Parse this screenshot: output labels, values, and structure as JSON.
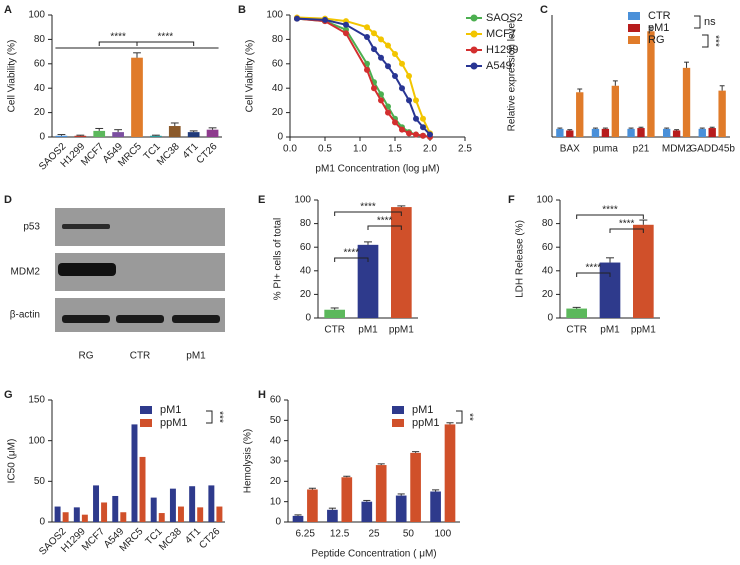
{
  "chart_data": [
    {
      "type": "bar",
      "panel": "A",
      "ylabel": "Cell Viability (%)",
      "categories": [
        "SAOS2",
        "H1299",
        "MCF7",
        "A549",
        "MRC5",
        "TC1",
        "MC38",
        "4T1",
        "CT26"
      ],
      "values": [
        1,
        1,
        5,
        4,
        65,
        1,
        9,
        4,
        6
      ],
      "errors": [
        1,
        0.5,
        2,
        2,
        4,
        0.5,
        2.5,
        1,
        1.5
      ],
      "colors": [
        "#4a90d9",
        "#c0392b",
        "#5cb85c",
        "#7b4fa0",
        "#e07b2a",
        "#2a9d9d",
        "#8b5a2b",
        "#1f3a7a",
        "#8e3b8e"
      ],
      "ylim": [
        0,
        100
      ],
      "yticks": [
        0,
        20,
        40,
        60,
        80,
        100
      ],
      "annotations": [
        "****",
        "****"
      ]
    },
    {
      "type": "line",
      "panel": "B",
      "ylabel": "Cell Viability (%)",
      "xlabel": "pM1 Concentration (log μM)",
      "x": [
        0.1,
        0.5,
        0.8,
        1.1,
        1.2,
        1.3,
        1.4,
        1.5,
        1.6,
        1.7,
        1.8,
        1.9,
        2.0
      ],
      "series": [
        {
          "name": "SAOS2",
          "color": "#4caf50",
          "values": [
            97,
            95,
            88,
            60,
            45,
            35,
            25,
            15,
            8,
            4,
            2,
            1,
            0
          ]
        },
        {
          "name": "MCF7",
          "color": "#f2c500",
          "values": [
            98,
            97,
            95,
            90,
            85,
            80,
            75,
            68,
            60,
            50,
            30,
            15,
            3
          ]
        },
        {
          "name": "H1299",
          "color": "#d32f2f",
          "values": [
            97,
            95,
            85,
            55,
            40,
            30,
            20,
            12,
            6,
            3,
            2,
            1,
            0
          ]
        },
        {
          "name": "A549",
          "color": "#283593",
          "values": [
            97,
            96,
            92,
            82,
            72,
            65,
            58,
            50,
            40,
            30,
            15,
            8,
            2
          ]
        }
      ],
      "xlim": [
        0,
        2.5
      ],
      "xticks": [
        {
          "value": 0,
          "label": "0.0"
        },
        0.5,
        {
          "value": 1,
          "label": "1.0"
        },
        1.5,
        {
          "value": 2,
          "label": "2.0"
        },
        2.5
      ],
      "ylim": [
        0,
        100
      ],
      "yticks": [
        0,
        20,
        40,
        60,
        80,
        100
      ]
    },
    {
      "type": "bar",
      "panel": "C",
      "ylabel": "Relative expression level",
      "categories": [
        "BAX",
        "puma",
        "p21",
        "MDM2",
        "GADD45b"
      ],
      "series": [
        {
          "name": "CTR",
          "color": "#4a90d9",
          "values": [
            1,
            1,
            1,
            1,
            1
          ],
          "errors": [
            0.1,
            0.1,
            0.1,
            0.1,
            0.1
          ]
        },
        {
          "name": "pM1",
          "color": "#b71c1c",
          "values": [
            0.8,
            1,
            1.1,
            0.8,
            1.1
          ],
          "errors": [
            0.1,
            0.1,
            0.1,
            0.1,
            0.1
          ]
        },
        {
          "name": "RG",
          "color": "#e07b2a",
          "values": [
            5.5,
            6.3,
            13,
            8.5,
            5.7
          ],
          "errors": [
            0.4,
            0.6,
            0.5,
            0.7,
            0.6
          ]
        }
      ],
      "ylim": [
        0,
        15
      ],
      "annotations": [
        "ns",
        "***"
      ]
    },
    {
      "type": "bar",
      "panel": "E",
      "ylabel": "% PI+ cells of total",
      "categories": [
        "CTR",
        "pM1",
        "ppM1"
      ],
      "values": [
        7,
        62,
        94
      ],
      "errors": [
        1.5,
        2.5,
        1
      ],
      "colors": [
        "#5cb85c",
        "#2e3a8c",
        "#d0502a"
      ],
      "ylim": [
        0,
        100
      ],
      "yticks": [
        0,
        20,
        40,
        60,
        80,
        100
      ],
      "annotations": [
        "****",
        "****",
        "****"
      ]
    },
    {
      "type": "bar",
      "panel": "F",
      "ylabel": "LDH Release (%)",
      "categories": [
        "CTR",
        "pM1",
        "ppM1"
      ],
      "values": [
        8,
        47,
        79
      ],
      "errors": [
        1,
        4,
        4
      ],
      "colors": [
        "#5cb85c",
        "#2e3a8c",
        "#d0502a"
      ],
      "ylim": [
        0,
        100
      ],
      "yticks": [
        0,
        20,
        40,
        60,
        80,
        100
      ],
      "annotations": [
        "****",
        "****",
        "****"
      ]
    },
    {
      "type": "bar",
      "panel": "G",
      "ylabel": "IC50 (μM)",
      "categories": [
        "SAOS2",
        "H1299",
        "MCF7",
        "A549",
        "MRC5",
        "TC1",
        "MC38",
        "4T1",
        "CT26"
      ],
      "series": [
        {
          "name": "pM1",
          "color": "#2e3a8c",
          "values": [
            19,
            18,
            45,
            32,
            120,
            30,
            41,
            44,
            45
          ]
        },
        {
          "name": "ppM1",
          "color": "#d0502a",
          "values": [
            12,
            9,
            24,
            12,
            80,
            11,
            19,
            18,
            19
          ]
        }
      ],
      "ylim": [
        0,
        150
      ],
      "yticks": [
        0,
        50,
        100,
        150
      ],
      "annotations": [
        "***"
      ]
    },
    {
      "type": "bar",
      "panel": "H",
      "ylabel": "Hemolysis (%)",
      "xlabel": "Peptide Concentration ( μM)",
      "categories": [
        "6.25",
        "12.5",
        "25",
        "50",
        "100"
      ],
      "series": [
        {
          "name": "pM1",
          "color": "#2e3a8c",
          "values": [
            3,
            6,
            10,
            13,
            15
          ],
          "errors": [
            0.5,
            0.8,
            0.6,
            0.8,
            0.8
          ]
        },
        {
          "name": "ppM1",
          "color": "#d0502a",
          "values": [
            16,
            22,
            28,
            34,
            48
          ],
          "errors": [
            0.6,
            0.5,
            0.6,
            0.6,
            0.8
          ]
        }
      ],
      "ylim": [
        0,
        60
      ],
      "yticks": [
        0,
        10,
        20,
        30,
        40,
        50,
        60
      ],
      "annotations": [
        "**"
      ]
    }
  ],
  "blot": {
    "panel": "D",
    "rows": [
      "p53",
      "MDM2",
      "β-actin"
    ],
    "columns": [
      "RG",
      "CTR",
      "pM1"
    ]
  }
}
